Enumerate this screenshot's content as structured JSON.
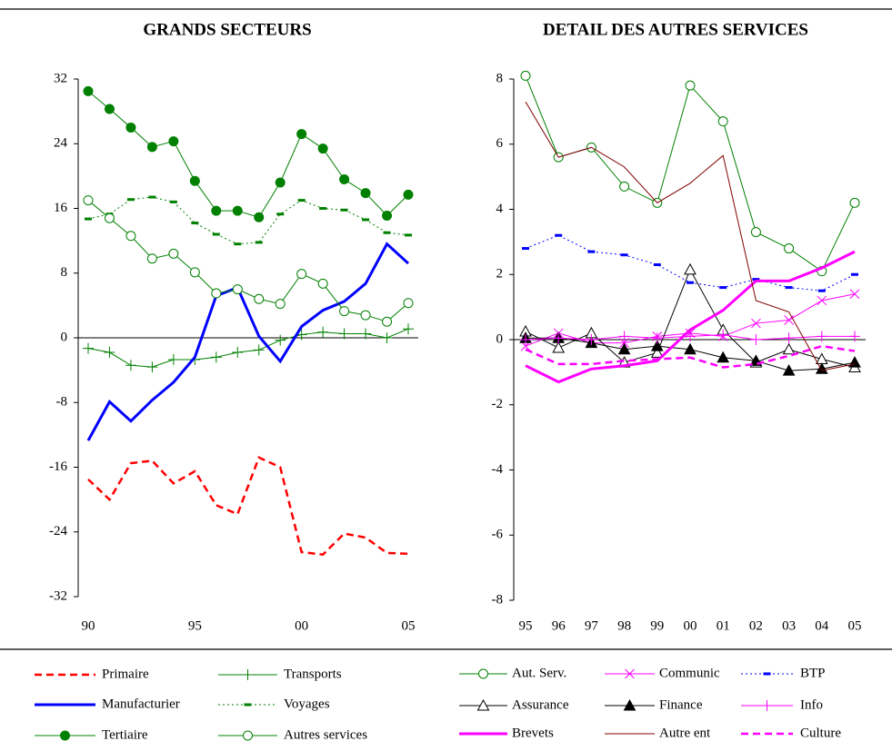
{
  "chart_data": [
    {
      "type": "line",
      "title": "GRANDS SECTEURS",
      "categories": [
        "90",
        null,
        null,
        null,
        null,
        "95",
        null,
        null,
        null,
        null,
        "00",
        null,
        null,
        null,
        null,
        "05"
      ],
      "ylim": [
        -32,
        32
      ],
      "yticks": [
        32,
        24,
        16,
        8,
        0,
        -8,
        -16,
        -24,
        -32
      ],
      "negative_tick_color": "#ff0000",
      "series": [
        {
          "name": "Primaire",
          "color": "#ff0000",
          "dash": "dashed",
          "width": 2.5,
          "marker": "none",
          "values": [
            -17.5,
            -20,
            -15.5,
            -15.2,
            -18,
            -16.5,
            -20.7,
            -21.8,
            -14.8,
            -16,
            -26.5,
            -26.8,
            -24.2,
            -24.7,
            -26.6,
            -26.7
          ]
        },
        {
          "name": "Transports",
          "color": "#008000",
          "dash": "solid",
          "width": 1,
          "marker": "plus",
          "values": [
            -1.3,
            -1.8,
            -3.4,
            -3.6,
            -2.7,
            -2.7,
            -2.4,
            -1.8,
            -1.5,
            -0.3,
            0.4,
            0.7,
            0.5,
            0.5,
            0,
            1.1
          ]
        },
        {
          "name": "Manufacturier",
          "color": "#0000ff",
          "dash": "solid",
          "width": 3,
          "marker": "none",
          "values": [
            -12.7,
            -7.9,
            -10.3,
            -7.7,
            -5.5,
            -2.4,
            5.2,
            6.2,
            0.2,
            -2.9,
            1.4,
            3.4,
            4.5,
            6.7,
            11.6,
            9.2
          ]
        },
        {
          "name": "Voyages",
          "color": "#008000",
          "dash": "dotted",
          "width": 1,
          "marker": "dash",
          "values": [
            14.7,
            15.3,
            17.1,
            17.4,
            16.8,
            14.2,
            12.8,
            11.6,
            11.8,
            15.3,
            17,
            16,
            15.8,
            14.6,
            13,
            12.7
          ]
        },
        {
          "name": "Tertiaire",
          "color": "#008000",
          "dash": "solid",
          "width": 1,
          "marker": "circle-filled",
          "values": [
            30.5,
            28.3,
            26,
            23.6,
            24.3,
            19.4,
            15.7,
            15.7,
            14.9,
            19.2,
            25.2,
            23.4,
            19.6,
            17.9,
            15.1,
            17.7
          ]
        },
        {
          "name": "Autres services",
          "color": "#008000",
          "dash": "solid",
          "width": 1,
          "marker": "circle-open",
          "values": [
            17,
            14.8,
            12.6,
            9.8,
            10.4,
            8.1,
            5.5,
            6,
            4.8,
            4.2,
            7.9,
            6.7,
            3.3,
            2.8,
            2,
            4.3
          ]
        }
      ]
    },
    {
      "type": "line",
      "title": "DETAIL DES AUTRES SERVICES",
      "categories": [
        "95",
        "96",
        "97",
        "98",
        "99",
        "00",
        "01",
        "02",
        "03",
        "04",
        "05"
      ],
      "ylim": [
        -8,
        8
      ],
      "yticks": [
        8,
        6,
        4,
        2,
        0,
        -2,
        -4,
        -6,
        -8
      ],
      "series": [
        {
          "name": "Aut. Serv.",
          "color": "#008000",
          "dash": "solid",
          "width": 1,
          "marker": "circle-open",
          "values": [
            8.1,
            5.6,
            5.9,
            4.7,
            4.2,
            7.8,
            6.7,
            3.3,
            2.8,
            2.1,
            4.2
          ]
        },
        {
          "name": "Communic",
          "color": "#ff00ff",
          "dash": "solid",
          "width": 1,
          "marker": "x",
          "values": [
            -0.2,
            0.2,
            -0.1,
            -0.1,
            0.1,
            0.2,
            0.1,
            0.5,
            0.6,
            1.2,
            1.4
          ]
        },
        {
          "name": "BTP",
          "color": "#0000ff",
          "dash": "dotted",
          "width": 1,
          "marker": "dash",
          "values": [
            2.8,
            3.2,
            2.7,
            2.6,
            2.3,
            1.75,
            1.6,
            1.85,
            1.6,
            1.5,
            2
          ]
        },
        {
          "name": "Assurance",
          "color": "#000000",
          "dash": "solid",
          "width": 1,
          "marker": "triangle-open",
          "values": [
            0.25,
            -0.25,
            0.2,
            -0.7,
            -0.4,
            2.15,
            0.3,
            -0.7,
            -0.3,
            -0.6,
            -0.85
          ]
        },
        {
          "name": "Finance",
          "color": "#000000",
          "dash": "solid",
          "width": 1,
          "marker": "triangle-filled",
          "values": [
            0.05,
            0.05,
            -0.1,
            -0.3,
            -0.2,
            -0.3,
            -0.55,
            -0.65,
            -0.95,
            -0.9,
            -0.7
          ]
        },
        {
          "name": "Info",
          "color": "#ff00ff",
          "dash": "solid",
          "width": 1,
          "marker": "plus",
          "values": [
            0,
            0.05,
            0,
            0.1,
            0.05,
            0.1,
            0.15,
            0,
            0.05,
            0.1,
            0.1
          ]
        },
        {
          "name": "Brevets",
          "color": "#ff00ff",
          "dash": "solid",
          "width": 3,
          "marker": "none",
          "values": [
            -0.8,
            -1.3,
            -0.9,
            -0.8,
            -0.65,
            0.3,
            0.9,
            1.8,
            1.8,
            2.2,
            2.7
          ]
        },
        {
          "name": "Autre ent",
          "color": "#800000",
          "dash": "solid",
          "width": 1,
          "marker": "none",
          "values": [
            7.3,
            5.6,
            5.9,
            5.3,
            4.2,
            4.8,
            5.65,
            1.2,
            0.85,
            -0.95,
            -0.75
          ]
        },
        {
          "name": "Culture",
          "color": "#ff00ff",
          "dash": "dashed",
          "width": 2.5,
          "marker": "none",
          "values": [
            -0.3,
            -0.75,
            -0.75,
            -0.65,
            -0.6,
            -0.55,
            -0.85,
            -0.75,
            -0.5,
            -0.2,
            -0.35
          ]
        }
      ]
    }
  ]
}
